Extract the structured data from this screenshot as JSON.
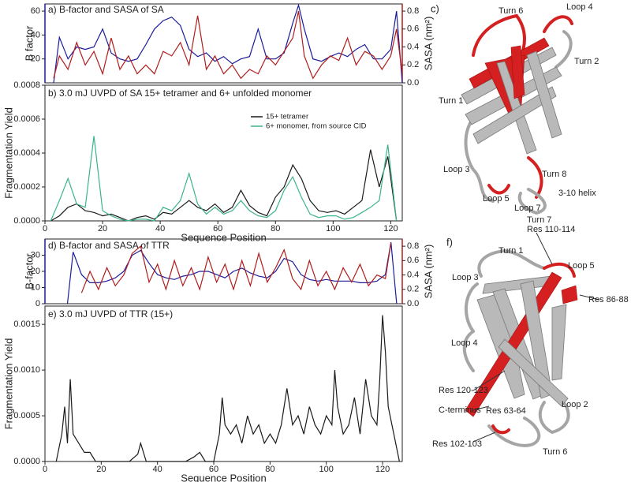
{
  "chart_data": [
    {
      "type": "line",
      "title": "a) B-factor and SASA of SA",
      "ylabel": "B factor",
      "y2label": "SASA (nm²)",
      "x": [
        3,
        5,
        8,
        11,
        14,
        17,
        20,
        23,
        26,
        29,
        32,
        35,
        38,
        41,
        44,
        47,
        50,
        53,
        56,
        59,
        62,
        65,
        68,
        71,
        74,
        77,
        80,
        83,
        86,
        88,
        90,
        93,
        96,
        99,
        102,
        105,
        108,
        111,
        114,
        117,
        120,
        122,
        124
      ],
      "series": [
        {
          "name": "B factor",
          "color": "#1c1c9c",
          "values": [
            0,
            38,
            20,
            30,
            28,
            30,
            45,
            25,
            20,
            18,
            20,
            32,
            45,
            52,
            55,
            48,
            28,
            22,
            25,
            18,
            22,
            16,
            20,
            22,
            45,
            20,
            20,
            25,
            50,
            65,
            45,
            20,
            18,
            22,
            25,
            22,
            28,
            32,
            20,
            20,
            28,
            60,
            0
          ]
        },
        {
          "name": "SASA",
          "color": "#b01c1c",
          "axis": "y2",
          "values": [
            0.05,
            0.3,
            0.15,
            0.45,
            0.2,
            0.35,
            0.1,
            0.5,
            0.15,
            0.3,
            0.1,
            0.2,
            0.1,
            0.35,
            0.3,
            0.45,
            0.2,
            0.75,
            0.15,
            0.3,
            0.1,
            0.2,
            0.05,
            0.15,
            0.1,
            0.3,
            0.2,
            0.35,
            0.5,
            0.8,
            0.3,
            0.05,
            0.2,
            0.3,
            0.25,
            0.5,
            0.2,
            0.35,
            0.3,
            0.15,
            0.3,
            0.6,
            0.1
          ]
        }
      ],
      "xlim": [
        0,
        124
      ],
      "ylim": [
        0,
        66
      ],
      "yticks": [
        20,
        40,
        60
      ],
      "y2lim": [
        0,
        0.88
      ],
      "y2ticks": [
        {
          "value": 0,
          "label": "0.0"
        },
        0.2,
        0.4,
        0.6,
        0.8
      ]
    },
    {
      "type": "line",
      "title": "b) 3.0 mJ UVPD of  SA 15+ tetramer and 6+ unfolded monomer",
      "xlabel": "Sequence Position",
      "ylabel": "Fragmentation Yield",
      "x": [
        2,
        5,
        8,
        11,
        14,
        17,
        20,
        23,
        26,
        29,
        32,
        35,
        38,
        41,
        44,
        47,
        50,
        53,
        56,
        59,
        62,
        65,
        68,
        71,
        74,
        77,
        80,
        83,
        86,
        89,
        92,
        95,
        98,
        101,
        104,
        107,
        110,
        113,
        116,
        119,
        122
      ],
      "series": [
        {
          "name": "15+ tetramer",
          "color": "#1a1a1a",
          "values": [
            0,
            3e-05,
            8e-05,
            0.0001,
            6e-05,
            5e-05,
            3e-05,
            4e-05,
            2e-05,
            0,
            2e-05,
            3e-05,
            1e-05,
            5e-05,
            4e-05,
            8e-05,
            0.00012,
            8e-05,
            6e-05,
            0.0001,
            5e-05,
            8e-05,
            0.00018,
            9e-05,
            5e-05,
            3e-05,
            0.00014,
            0.0002,
            0.00033,
            0.00025,
            0.00012,
            6e-05,
            5e-05,
            6e-05,
            4e-05,
            8e-05,
            0.00012,
            0.00042,
            0.0002,
            0.00038,
            0
          ]
        },
        {
          "name": "6+ monomer, from source CID",
          "color": "#3cb48a",
          "values": [
            0,
            0.00012,
            0.00025,
            0.0001,
            8e-05,
            0.0005,
            6e-05,
            3e-05,
            1e-05,
            0,
            1e-05,
            1e-05,
            0,
            8e-05,
            6e-05,
            0.00012,
            0.00028,
            0.0001,
            4e-05,
            8e-05,
            4e-05,
            6e-05,
            0.00012,
            6e-05,
            3e-05,
            2e-05,
            6e-05,
            0.00018,
            0.00026,
            0.00014,
            4e-05,
            2e-05,
            3e-05,
            3e-05,
            1e-05,
            2e-05,
            5e-05,
            8e-05,
            0.00012,
            0.00045,
            0
          ]
        }
      ],
      "xlim": [
        0,
        124
      ],
      "xticks": [
        0,
        20,
        40,
        60,
        80,
        100,
        120
      ],
      "ylim": [
        0,
        0.0008
      ],
      "yticks": [
        {
          "value": 0,
          "label": "0.0000"
        },
        0.0002,
        0.0004,
        0.0006,
        0.0008
      ]
    },
    {
      "type": "line",
      "title": "d) B-factor and SASA of TTR",
      "ylabel": "B-factor",
      "y2label": "SASA (nm²)",
      "x": [
        8,
        10,
        13,
        16,
        19,
        22,
        25,
        28,
        31,
        34,
        37,
        40,
        43,
        46,
        49,
        52,
        55,
        58,
        61,
        64,
        67,
        70,
        73,
        76,
        79,
        82,
        85,
        88,
        91,
        94,
        97,
        100,
        103,
        106,
        109,
        112,
        115,
        118,
        121,
        123,
        125
      ],
      "series": [
        {
          "name": "B-factor",
          "color": "#1c1c9c",
          "values": [
            0,
            32,
            18,
            13,
            13,
            14,
            16,
            20,
            30,
            33,
            25,
            18,
            16,
            15,
            17,
            18,
            20,
            20,
            18,
            16,
            20,
            22,
            19,
            17,
            16,
            20,
            28,
            26,
            18,
            15,
            14,
            15,
            14,
            14,
            14,
            13,
            13,
            14,
            18,
            38,
            0
          ]
        },
        {
          "name": "SASA",
          "color": "#b01c1c",
          "axis": "y2",
          "values": [
            null,
            null,
            0.15,
            0.45,
            0.2,
            0.5,
            0.25,
            0.4,
            0.7,
            0.8,
            0.3,
            0.55,
            0.2,
            0.6,
            0.25,
            0.5,
            0.2,
            0.65,
            0.3,
            0.55,
            0.2,
            0.6,
            0.25,
            0.7,
            0.3,
            0.5,
            0.75,
            0.35,
            0.2,
            0.6,
            0.25,
            0.45,
            0.2,
            0.5,
            0.3,
            0.55,
            0.25,
            0.4,
            0.35,
            0.85,
            null
          ]
        }
      ],
      "xlim": [
        0,
        127
      ],
      "ylim": [
        0,
        40
      ],
      "yticks": [
        0,
        10,
        20,
        30
      ],
      "y2lim": [
        0,
        0.9
      ],
      "y2ticks": [
        {
          "value": 0,
          "label": "0.0"
        },
        0.2,
        0.4,
        0.6,
        0.8
      ]
    },
    {
      "type": "line",
      "title": "e) 3.0 mJ UVPD of TTR (15+)",
      "xlabel": "Sequence Position",
      "ylabel": "Fragmentation Yield",
      "x": [
        4,
        6,
        7,
        8,
        9,
        10,
        12,
        14,
        16,
        18,
        22,
        30,
        33,
        34,
        36,
        50,
        53,
        55,
        57,
        60,
        62,
        63,
        64,
        66,
        68,
        70,
        72,
        74,
        76,
        78,
        80,
        82,
        84,
        86,
        88,
        90,
        92,
        94,
        96,
        98,
        100,
        102,
        103,
        104,
        106,
        108,
        110,
        112,
        114,
        116,
        118,
        119,
        120,
        121,
        122,
        124,
        126
      ],
      "series": [
        {
          "name": "15+",
          "color": "#1a1a1a",
          "values": [
            0,
            0.0003,
            0.0006,
            0.0002,
            0.0009,
            0.0003,
            0.0002,
            0.0001,
            0.0001,
            0,
            0,
            0,
            8e-05,
            0.0002,
            0,
            0,
            5e-05,
            0.0001,
            0,
            0,
            0.0003,
            0.0007,
            0.0004,
            0.0003,
            0.0004,
            0.0002,
            0.0005,
            0.0003,
            0.0004,
            0.0002,
            0.0003,
            0.0002,
            0.0004,
            0.0008,
            0.0004,
            0.0005,
            0.0003,
            0.0006,
            0.0004,
            0.0003,
            0.0005,
            0.0004,
            0.001,
            0.0006,
            0.0003,
            0.0004,
            0.0007,
            0.0003,
            0.0009,
            0.0005,
            0.0004,
            0.0009,
            0.0016,
            0.0012,
            0.0006,
            0.0003,
            0
          ]
        }
      ],
      "xlim": [
        0,
        127
      ],
      "xticks": [
        0,
        20,
        40,
        60,
        80,
        100,
        120
      ],
      "ylim": [
        0,
        0.0017
      ],
      "yticks": [
        {
          "value": 0,
          "label": "0.0000"
        },
        0.0005,
        {
          "value": 0.001,
          "label": "0.0010"
        },
        0.0015
      ]
    }
  ],
  "structures": [
    {
      "panel": "c)",
      "labels": [
        "Turn 6",
        "Loop 4",
        "Turn 2",
        "Turn 1",
        "Loop 3",
        "Turn 8",
        "3-10 helix",
        "Loop 5",
        "Loop 7"
      ]
    },
    {
      "panel": "f)",
      "labels": [
        "Turn 7",
        "Res 110-114",
        "Turn 1",
        "Loop 5",
        "Loop 3",
        "Res 86-88",
        "Loop 4",
        "Res 120-123",
        "C-terminus",
        "Res 63-64",
        "Loop 2",
        "Res 102-103",
        "Turn 6"
      ]
    }
  ]
}
